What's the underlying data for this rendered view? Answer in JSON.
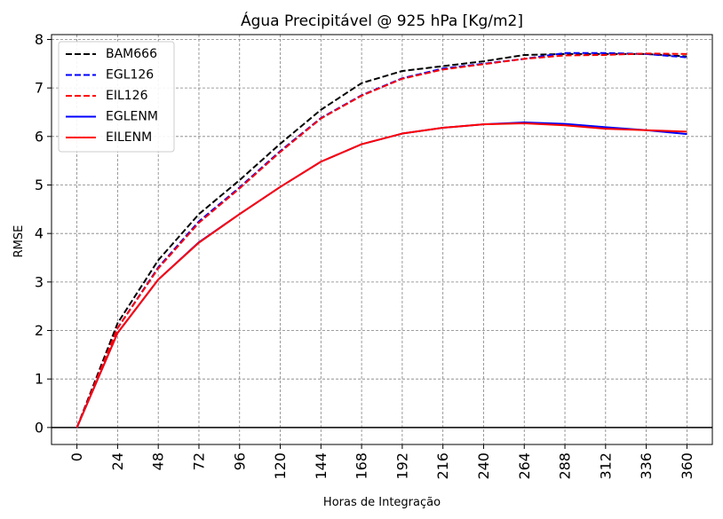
{
  "chart_data": {
    "type": "line",
    "title": "Água Precipitável @ 925 hPa [Kg/m2]",
    "xlabel": "Horas de Integração",
    "ylabel": "RMSE",
    "x": [
      0,
      24,
      48,
      72,
      96,
      120,
      144,
      168,
      192,
      216,
      240,
      264,
      288,
      312,
      336,
      360
    ],
    "xticks": [
      "0",
      "24",
      "48",
      "72",
      "96",
      "120",
      "144",
      "168",
      "192",
      "216",
      "240",
      "264",
      "288",
      "312",
      "336",
      "360"
    ],
    "yticks": [
      "0",
      "1",
      "2",
      "3",
      "4",
      "5",
      "6",
      "7",
      "8"
    ],
    "ylim": [
      -0.35,
      8.1
    ],
    "grid": true,
    "legend_position": "top-left",
    "series": [
      {
        "name": "BAM666",
        "color": "#000000",
        "dash": "dashed",
        "values": [
          0.0,
          2.15,
          3.45,
          4.4,
          5.1,
          5.85,
          6.55,
          7.1,
          7.35,
          7.45,
          7.55,
          7.68,
          7.7,
          7.7,
          7.7,
          7.65
        ]
      },
      {
        "name": "EGL126",
        "color": "#0000ff",
        "dash": "dashed",
        "values": [
          0.0,
          2.05,
          3.3,
          4.25,
          4.95,
          5.7,
          6.38,
          6.85,
          7.2,
          7.4,
          7.5,
          7.6,
          7.72,
          7.72,
          7.7,
          7.63
        ]
      },
      {
        "name": "EIL126",
        "color": "#ff0000",
        "dash": "dashed",
        "values": [
          0.0,
          2.05,
          3.28,
          4.22,
          4.93,
          5.68,
          6.37,
          6.84,
          7.19,
          7.38,
          7.49,
          7.6,
          7.67,
          7.68,
          7.71,
          7.7
        ]
      },
      {
        "name": "EGLENM",
        "color": "#0000ff",
        "dash": "solid",
        "values": [
          0.0,
          1.95,
          3.05,
          3.82,
          4.4,
          4.96,
          5.48,
          5.84,
          6.06,
          6.18,
          6.25,
          6.29,
          6.26,
          6.19,
          6.13,
          6.05
        ]
      },
      {
        "name": "EILENM",
        "color": "#ff0000",
        "dash": "solid",
        "values": [
          0.0,
          1.95,
          3.05,
          3.81,
          4.4,
          4.96,
          5.48,
          5.84,
          6.06,
          6.18,
          6.25,
          6.27,
          6.23,
          6.16,
          6.13,
          6.1
        ]
      }
    ]
  }
}
